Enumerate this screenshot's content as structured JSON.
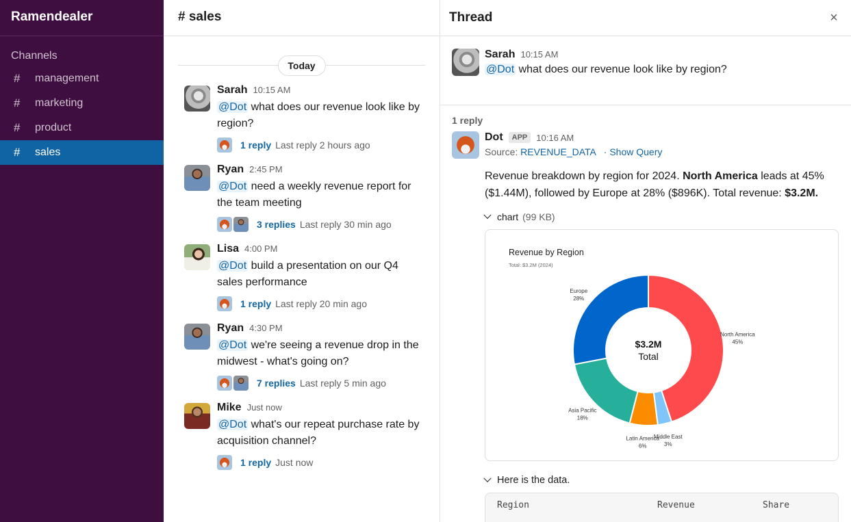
{
  "workspace": {
    "name": "Ramendealer"
  },
  "sidebar": {
    "section_title": "Channels",
    "channels": [
      {
        "label": "management",
        "active": false
      },
      {
        "label": "marketing",
        "active": false
      },
      {
        "label": "product",
        "active": false
      },
      {
        "label": "sales",
        "active": true
      }
    ],
    "hash_icon": "#"
  },
  "channel": {
    "title": "# sales",
    "day_divider": "Today",
    "messages": [
      {
        "author": "Sarah",
        "time": "10:15 AM",
        "mention": "@Dot",
        "text": "what does our revenue look like by region?",
        "reply_link": "1 reply",
        "reply_meta": "Last reply 2 hours ago"
      },
      {
        "author": "Ryan",
        "time": "2:45 PM",
        "mention": "@Dot",
        "text": "need a weekly revenue report for the team meeting",
        "reply_link": "3 replies",
        "reply_meta": "Last reply 30 min ago"
      },
      {
        "author": "Lisa",
        "time": "4:00 PM",
        "mention": "@Dot",
        "text": "build a presentation on our Q4 sales performance",
        "reply_link": "1 reply",
        "reply_meta": "Last reply 20 min ago"
      },
      {
        "author": "Ryan",
        "time": "4:30 PM",
        "mention": "@Dot",
        "text": "we're seeing a revenue drop in the midwest - what's going on?",
        "reply_link": "7 replies",
        "reply_meta": "Last reply 5 min ago"
      },
      {
        "author": "Mike",
        "time": "Just now",
        "mention": "@Dot",
        "text": "what's our repeat purchase rate by acquisition channel?",
        "reply_link": "1 reply",
        "reply_meta": "Just now"
      }
    ]
  },
  "thread": {
    "title": "Thread",
    "close_icon": "×",
    "parent": {
      "author": "Sarah",
      "time": "10:15 AM",
      "mention": "@Dot",
      "text": "what does our revenue look like by region?"
    },
    "reply_count": "1 reply",
    "reply": {
      "author": "Dot",
      "badge": "APP",
      "time": "10:16 AM",
      "source_label": "Source:",
      "source_link": "REVENUE_DATA",
      "show_query": "· Show Query",
      "text_1": "Revenue breakdown by region for 2024.",
      "text_bold_1": "North America",
      "text_2": "leads at 45% ($1.44M), followed by Europe at 28% ($896K). Total revenue:",
      "text_bold_2": "$3.2M.",
      "attachment_label": "chart",
      "attachment_size": "(99 KB)",
      "data_toggle": "Here is the data.",
      "table_headers": [
        "Region",
        "Revenue",
        "Share"
      ]
    }
  },
  "chart_data": {
    "type": "pie",
    "title": "Revenue by Region",
    "subtitle": "Total: $3.2M (2024)",
    "center_value": "$3.2M",
    "center_label": "Total",
    "categories": [
      "North America",
      "Middle East",
      "Latin America",
      "Asia Pacific",
      "Europe"
    ],
    "values": [
      45,
      3,
      6,
      18,
      28
    ],
    "labels": [
      "45%",
      "3%",
      "6%",
      "18%",
      "28%"
    ],
    "colors": [
      "#ff4a4d",
      "#7fc5fa",
      "#fb8c00",
      "#26b09b",
      "#0066cc"
    ],
    "donut": true
  },
  "colors": {
    "sidebar_bg": "#3f0e40",
    "active_channel": "#1164a3",
    "link": "#1264a3",
    "mention_bg": "#e8f3fb"
  }
}
